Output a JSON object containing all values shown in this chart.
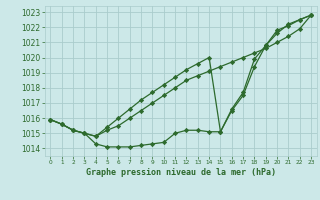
{
  "title": "Graphe pression niveau de la mer (hPa)",
  "x": [
    0,
    1,
    2,
    3,
    4,
    5,
    6,
    7,
    8,
    9,
    10,
    11,
    12,
    13,
    14,
    15,
    16,
    17,
    18,
    19,
    20,
    21,
    22,
    23
  ],
  "line1": [
    1015.9,
    1015.6,
    1015.2,
    1015.0,
    1014.3,
    1014.1,
    1014.1,
    1014.1,
    1014.2,
    1014.3,
    1014.4,
    1015.0,
    1015.2,
    1015.2,
    1015.1,
    1015.1,
    1016.6,
    1017.7,
    1019.9,
    1020.8,
    1021.6,
    1022.2,
    1022.5,
    1022.8
  ],
  "line2": [
    1015.9,
    1015.6,
    1015.2,
    1015.0,
    1014.8,
    1015.2,
    1015.5,
    1016.0,
    1016.5,
    1017.0,
    1017.5,
    1018.0,
    1018.5,
    1018.8,
    1019.1,
    1019.4,
    1019.7,
    1020.0,
    1020.3,
    1020.6,
    1021.0,
    1021.4,
    1021.9,
    1022.8
  ],
  "line3": [
    1015.9,
    1015.6,
    1015.2,
    1015.0,
    1014.8,
    1015.4,
    1016.0,
    1016.6,
    1017.2,
    1017.7,
    1018.2,
    1018.7,
    1019.2,
    1019.6,
    1020.0,
    1015.1,
    1016.5,
    1017.5,
    1019.4,
    1020.8,
    1021.8,
    1022.1,
    1022.5,
    1022.8
  ],
  "ylim": [
    1013.5,
    1023.4
  ],
  "yticks": [
    1014,
    1015,
    1016,
    1017,
    1018,
    1019,
    1020,
    1021,
    1022,
    1023
  ],
  "xticks": [
    0,
    1,
    2,
    3,
    4,
    5,
    6,
    7,
    8,
    9,
    10,
    11,
    12,
    13,
    14,
    15,
    16,
    17,
    18,
    19,
    20,
    21,
    22,
    23
  ],
  "line_color": "#2d6a2d",
  "bg_color": "#cce8e8",
  "grid_color": "#aacccc",
  "marker": "D",
  "marker_size": 2.2,
  "linewidth": 0.9,
  "title_fontsize": 6.0,
  "ytick_fontsize": 5.5,
  "xtick_fontsize": 4.2
}
